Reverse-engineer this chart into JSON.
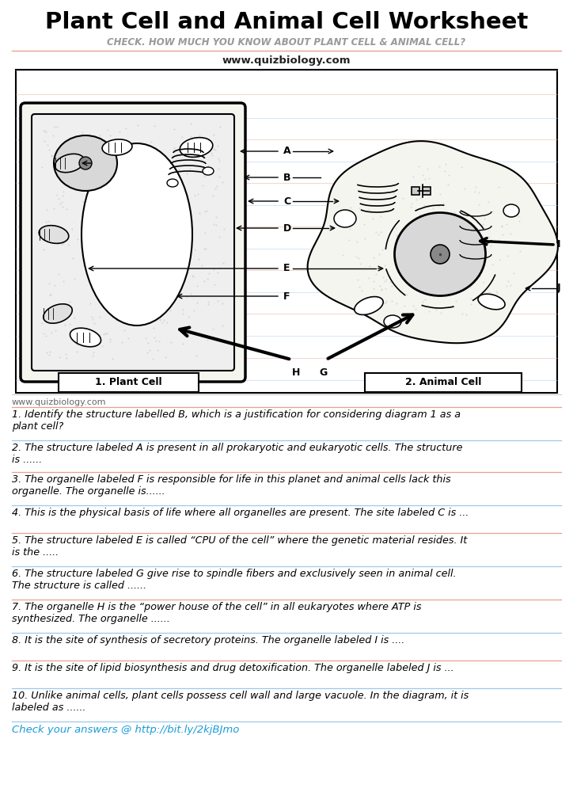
{
  "title": "Plant Cell and Animal Cell Worksheet",
  "subtitle": "CHECK. HOW MUCH YOU KNOW ABOUT PLANT CELL & ANIMAL CELL?",
  "website": "www.quizbiology.com",
  "website2": "www.quizbiology.com",
  "plant_cell_label": "1. Plant Cell",
  "animal_cell_label": "2. Animal Cell",
  "questions": [
    "1. Identify the structure labelled B, which is a justification for considering diagram 1 as a\nplant cell?",
    "2. The structure labeled A is present in all prokaryotic and eukaryotic cells. The structure\nis ......",
    "3. The organelle labeled F is responsible for life in this planet and animal cells lack this\norganelle. The organelle is......",
    "4. This is the physical basis of life where all organelles are present. The site labeled C is ...",
    "5. The structure labeled E is called “CPU of the cell” where the genetic material resides. It\nis the .....",
    "6. The structure labeled G give rise to spindle fibers and exclusively seen in animal cell.\nThe structure is called ......",
    "7. The organelle H is the “power house of the cell” in all eukaryotes where ATP is\nsynthesized. The organelle ......",
    "8. It is the site of synthesis of secretory proteins. The organelle labeled I is ....",
    "9. It is the site of lipid biosynthesis and drug detoxification. The organelle labeled J is ...",
    "10. Unlike animal cells, plant cells possess cell wall and large vacuole. In the diagram, it is\nlabeled as ......"
  ],
  "footer": "Check your answers @ http://bit.ly/2kjBJmo",
  "bg_color": "#ffffff",
  "title_color": "#000000",
  "subtitle_color": "#999999",
  "question_color": "#000000",
  "footer_color": "#1a9cd8",
  "line_color_salmon": "#e8a090",
  "line_color_blue": "#a0c8e8"
}
